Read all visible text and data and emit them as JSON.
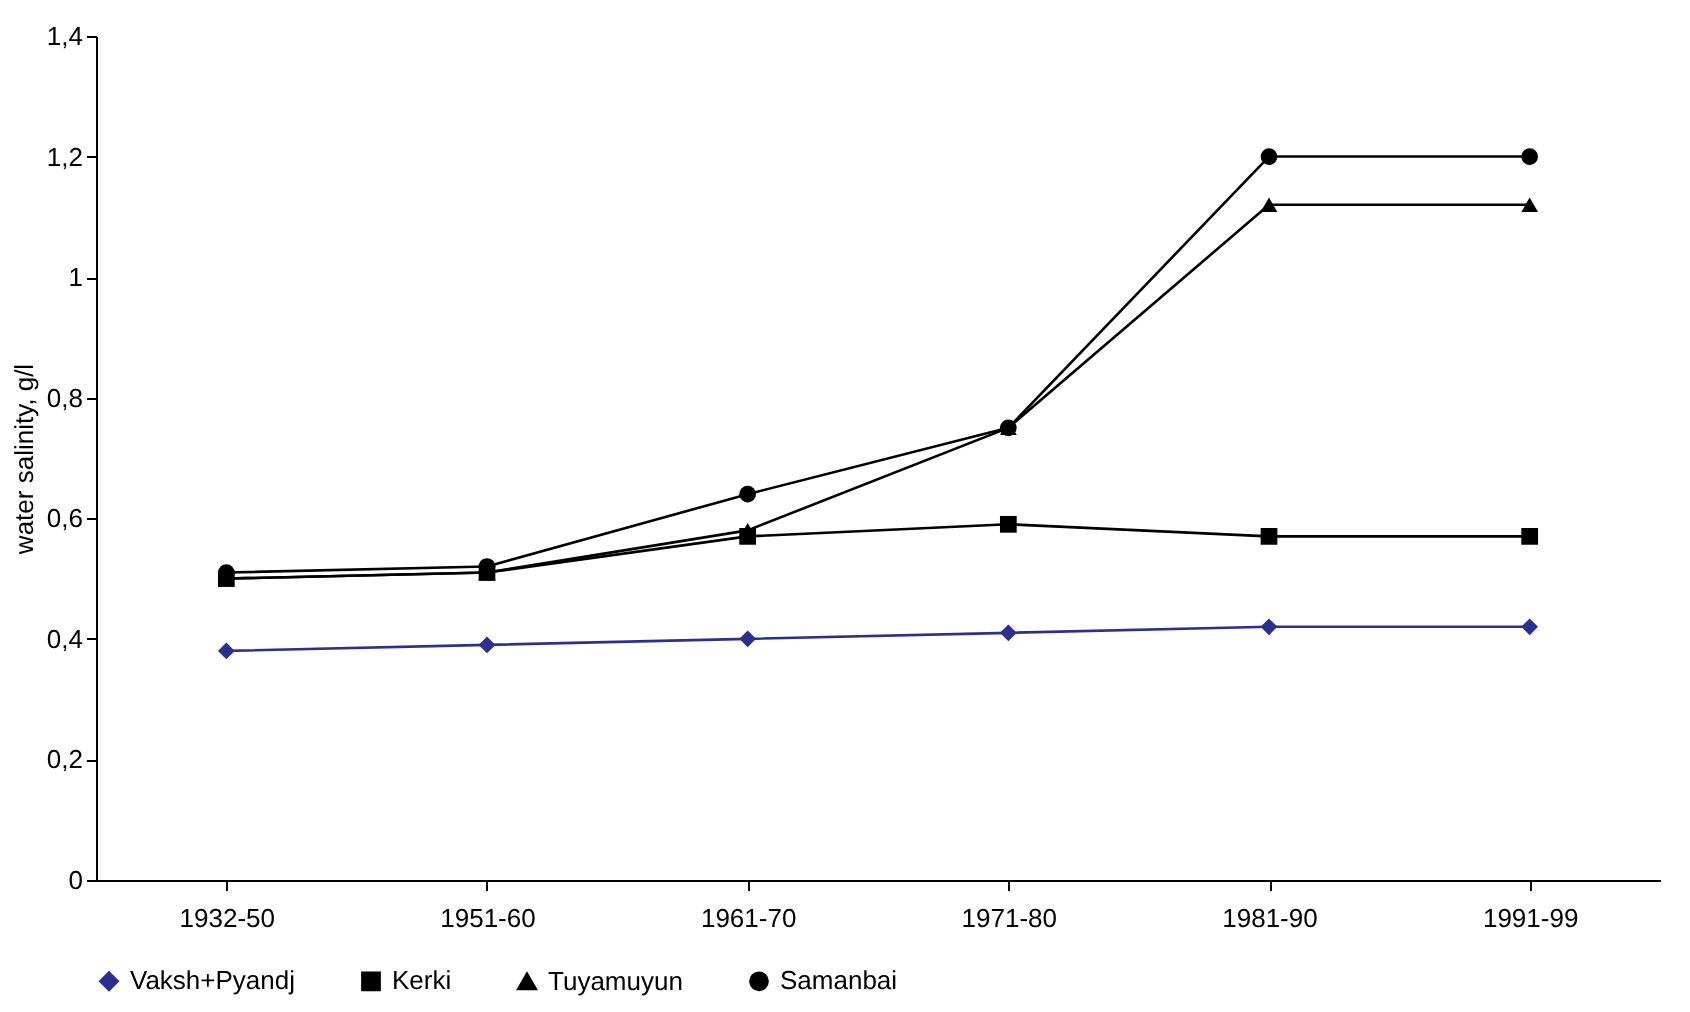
{
  "chart_data": {
    "type": "line",
    "ylabel": "water salinity, g/l",
    "categories": [
      "1932-50",
      "1951-60",
      "1961-70",
      "1971-80",
      "1981-90",
      "1991-99"
    ],
    "series": [
      {
        "name": "Vaksh+Pyandj",
        "color": "#2b2f8f",
        "marker": "diamond",
        "values": [
          0.38,
          0.39,
          0.4,
          0.41,
          0.42,
          0.42
        ]
      },
      {
        "name": "Kerki",
        "color": "#000000",
        "marker": "square",
        "values": [
          0.5,
          0.51,
          0.57,
          0.59,
          0.57,
          0.57
        ]
      },
      {
        "name": "Tuyamuyun",
        "color": "#000000",
        "marker": "triangle",
        "values": [
          0.5,
          0.51,
          0.58,
          0.75,
          1.12,
          1.12
        ]
      },
      {
        "name": "Samanbai",
        "color": "#000000",
        "marker": "circle",
        "values": [
          0.51,
          0.52,
          0.64,
          0.75,
          1.2,
          1.2
        ]
      }
    ],
    "ylim": [
      0,
      1.4
    ],
    "yticks": [
      0,
      {
        "value": 0.2,
        "label": "0,2"
      },
      {
        "value": 0.4,
        "label": "0,4"
      },
      {
        "value": 0.6,
        "label": "0,6"
      },
      {
        "value": 0.8,
        "label": "0,8"
      },
      1,
      {
        "value": 1.2,
        "label": "1,2"
      },
      {
        "value": 1.4,
        "label": "1,4"
      }
    ],
    "grid": false,
    "legend": "bottom",
    "line_style": "solid"
  }
}
